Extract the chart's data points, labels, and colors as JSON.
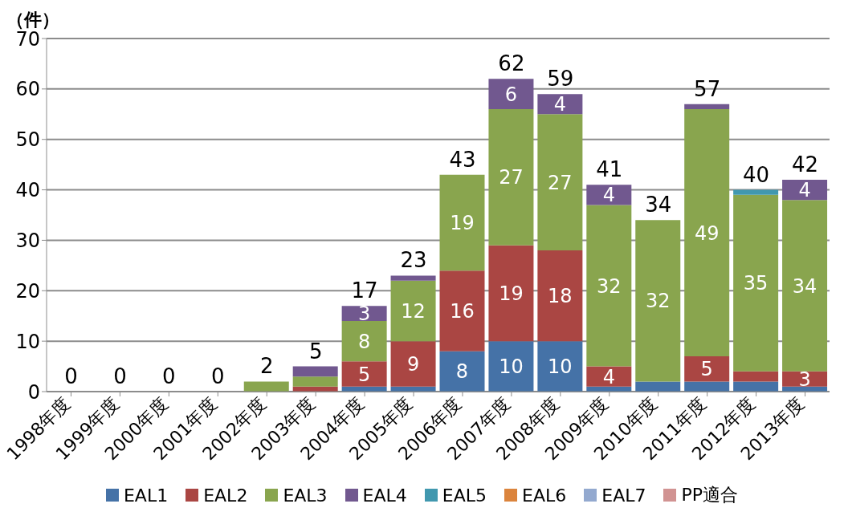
{
  "chart_data": {
    "type": "bar",
    "stacked": true,
    "ylabel": "（件）",
    "categories": [
      "1998年度",
      "1999年度",
      "2000年度",
      "2001年度",
      "2002年度",
      "2003年度",
      "2004年度",
      "2005年度",
      "2006年度",
      "2007年度",
      "2008年度",
      "2009年度",
      "2010年度",
      "2011年度",
      "2012年度",
      "2013年度"
    ],
    "series": [
      {
        "name": "EAL1",
        "color": "#4572a7",
        "values": [
          null,
          null,
          null,
          null,
          null,
          null,
          1,
          1,
          8,
          10,
          10,
          1,
          2,
          2,
          2,
          1
        ],
        "value_labels": [
          null,
          null,
          null,
          null,
          null,
          null,
          null,
          null,
          "8",
          "10",
          "10",
          null,
          null,
          null,
          null,
          null
        ]
      },
      {
        "name": "EAL2",
        "color": "#aa4643",
        "values": [
          null,
          null,
          null,
          null,
          null,
          1,
          5,
          9,
          16,
          19,
          18,
          4,
          null,
          5,
          2,
          3
        ],
        "value_labels": [
          null,
          null,
          null,
          null,
          null,
          null,
          "5",
          "9",
          "16",
          "19",
          "18",
          "4",
          null,
          "5",
          null,
          "3"
        ]
      },
      {
        "name": "EAL3",
        "color": "#89a54e",
        "values": [
          null,
          null,
          null,
          null,
          2,
          2,
          8,
          12,
          19,
          27,
          27,
          32,
          32,
          49,
          35,
          34
        ],
        "value_labels": [
          null,
          null,
          null,
          null,
          null,
          null,
          "8",
          "12",
          "19",
          "27",
          "27",
          "32",
          "32",
          "49",
          "35",
          "34"
        ]
      },
      {
        "name": "EAL4",
        "color": "#71588f",
        "values": [
          null,
          null,
          null,
          null,
          null,
          2,
          3,
          1,
          null,
          6,
          4,
          4,
          null,
          1,
          null,
          4
        ],
        "value_labels": [
          null,
          null,
          null,
          null,
          null,
          null,
          "3",
          null,
          null,
          "6",
          "4",
          "4",
          null,
          null,
          null,
          "4"
        ]
      },
      {
        "name": "EAL5",
        "color": "#4198af",
        "values": [
          null,
          null,
          null,
          null,
          null,
          null,
          null,
          null,
          null,
          null,
          null,
          null,
          null,
          null,
          1,
          null
        ]
      },
      {
        "name": "EAL6",
        "color": "#db843d",
        "values": [
          null,
          null,
          null,
          null,
          null,
          null,
          null,
          null,
          null,
          null,
          null,
          null,
          null,
          null,
          null,
          null
        ]
      },
      {
        "name": "EAL7",
        "color": "#93a9cf",
        "values": [
          null,
          null,
          null,
          null,
          null,
          null,
          null,
          null,
          null,
          null,
          null,
          null,
          null,
          null,
          null,
          null
        ]
      },
      {
        "name": "PP適合",
        "color": "#d19392",
        "values": [
          null,
          null,
          null,
          null,
          null,
          null,
          null,
          null,
          null,
          null,
          null,
          null,
          null,
          null,
          null,
          null
        ]
      }
    ],
    "totals": [
      "0",
      "0",
      "0",
      "0",
      "2",
      "5",
      "17",
      "23",
      "43",
      "62",
      "59",
      "41",
      "34",
      "57",
      "40",
      "42"
    ],
    "ylim": [
      0,
      70
    ],
    "yticks": [
      0,
      10,
      20,
      30,
      40,
      50,
      60,
      70
    ],
    "grid": "y",
    "legend": "bottom"
  }
}
